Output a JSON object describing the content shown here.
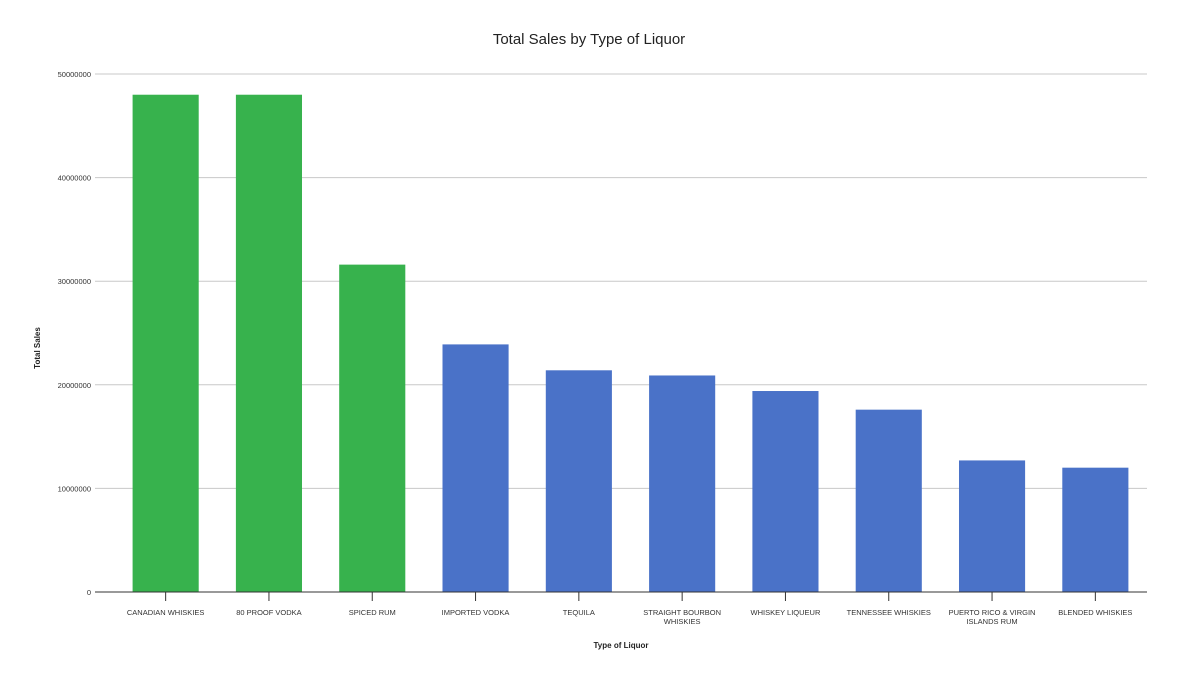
{
  "chart_data": {
    "type": "bar",
    "title": "Total Sales by Type of Liquor",
    "xlabel": "Type of Liquor",
    "ylabel": "Total Sales",
    "ylim": [
      0,
      50000000
    ],
    "yticks": [
      "0",
      "10000000",
      "20000000",
      "30000000",
      "40000000",
      "50000000"
    ],
    "grid": true,
    "legend": "none",
    "categories": [
      [
        "CANADIAN WHISKIES"
      ],
      [
        "80 PROOF VODKA"
      ],
      [
        "SPICED RUM"
      ],
      [
        "IMPORTED VODKA"
      ],
      [
        "TEQUILA"
      ],
      [
        "STRAIGHT BOURBON",
        "WHISKIES"
      ],
      [
        "WHISKEY LIQUEUR"
      ],
      [
        "TENNESSEE WHISKIES"
      ],
      [
        "PUERTO RICO & VIRGIN",
        "ISLANDS RUM"
      ],
      [
        "BLENDED WHISKIES"
      ]
    ],
    "values": [
      48000000,
      48000000,
      31600000,
      23900000,
      21400000,
      20900000,
      19400000,
      17600000,
      12700000,
      12000000
    ],
    "bar_colors": [
      "#37b24d",
      "#37b24d",
      "#37b24d",
      "#4a72c8",
      "#4a72c8",
      "#4a72c8",
      "#4a72c8",
      "#4a72c8",
      "#4a72c8",
      "#4a72c8"
    ]
  }
}
